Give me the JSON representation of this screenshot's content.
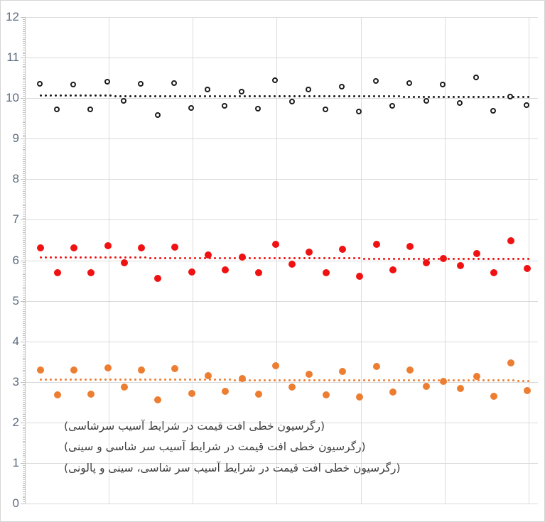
{
  "chart_data": {
    "type": "scatter",
    "title": "",
    "xlabel": "",
    "ylabel": "",
    "ylim": [
      0,
      12
    ],
    "y_ticks": [
      0,
      1,
      2,
      3,
      4,
      5,
      6,
      7,
      8,
      9,
      10,
      11,
      12
    ],
    "y_minor_tick_step": 0.05,
    "x_gridline_count": 6,
    "grid": true,
    "legend_position": "inside-bottom-left",
    "series": [
      {
        "name": "(رگرسیون خطی افت قیمت در شرایط آسیب سرشاسی)",
        "color": "#ED7D31",
        "marker": "circle-solid",
        "values": [
          3.3,
          2.68,
          3.3,
          2.7,
          3.35,
          2.88,
          3.29,
          2.55,
          3.32,
          2.72,
          3.15,
          2.77,
          3.09,
          2.7,
          3.4,
          2.88,
          3.18,
          2.68,
          3.25,
          2.62,
          3.38,
          2.75,
          3.3,
          2.89,
          3.01,
          2.84,
          3.13,
          2.65,
          3.47,
          2.78
        ],
        "trendline": {
          "type": "linear-dotted",
          "start": 3.06,
          "end": 3.03
        }
      },
      {
        "name": "(رگرسیون خطی افت قیمت در شرایط آسیب سر شاسی و سینی)",
        "color": "#F01212",
        "marker": "circle-solid",
        "values": [
          6.31,
          5.69,
          6.3,
          5.7,
          6.36,
          5.93,
          6.31,
          5.55,
          6.33,
          5.71,
          6.14,
          5.77,
          6.08,
          5.7,
          6.39,
          5.9,
          6.2,
          5.69,
          6.27,
          5.61,
          6.4,
          5.77,
          6.34,
          5.93,
          6.05,
          5.87,
          6.17,
          5.69,
          6.49,
          5.79
        ],
        "trendline": {
          "type": "linear-dotted",
          "start": 6.07,
          "end": 6.03
        }
      },
      {
        "name": "(رگرسیون خطی افت قیمت در شرایط آسیب سر شاسی، سینی و پالونی)",
        "color": "#1C1C1C",
        "marker": "circle-hollow",
        "values": [
          10.34,
          9.7,
          10.32,
          9.71,
          10.39,
          9.91,
          10.34,
          9.57,
          10.36,
          9.74,
          10.2,
          9.8,
          10.14,
          9.72,
          10.42,
          9.9,
          10.19,
          9.7,
          10.27,
          9.65,
          10.4,
          9.79,
          10.36,
          9.92,
          10.32,
          9.87,
          10.5,
          9.68,
          10.02,
          9.81
        ],
        "trendline": {
          "type": "linear-dotted",
          "start": 10.06,
          "end": 10.03
        }
      }
    ],
    "colors": {
      "gridline": "#DADADA",
      "axis_line": "#C3C3C3",
      "tick": "#BFBFBF",
      "axis_label": "#5B6B7E",
      "legend_text": "#3E3E3E"
    }
  }
}
